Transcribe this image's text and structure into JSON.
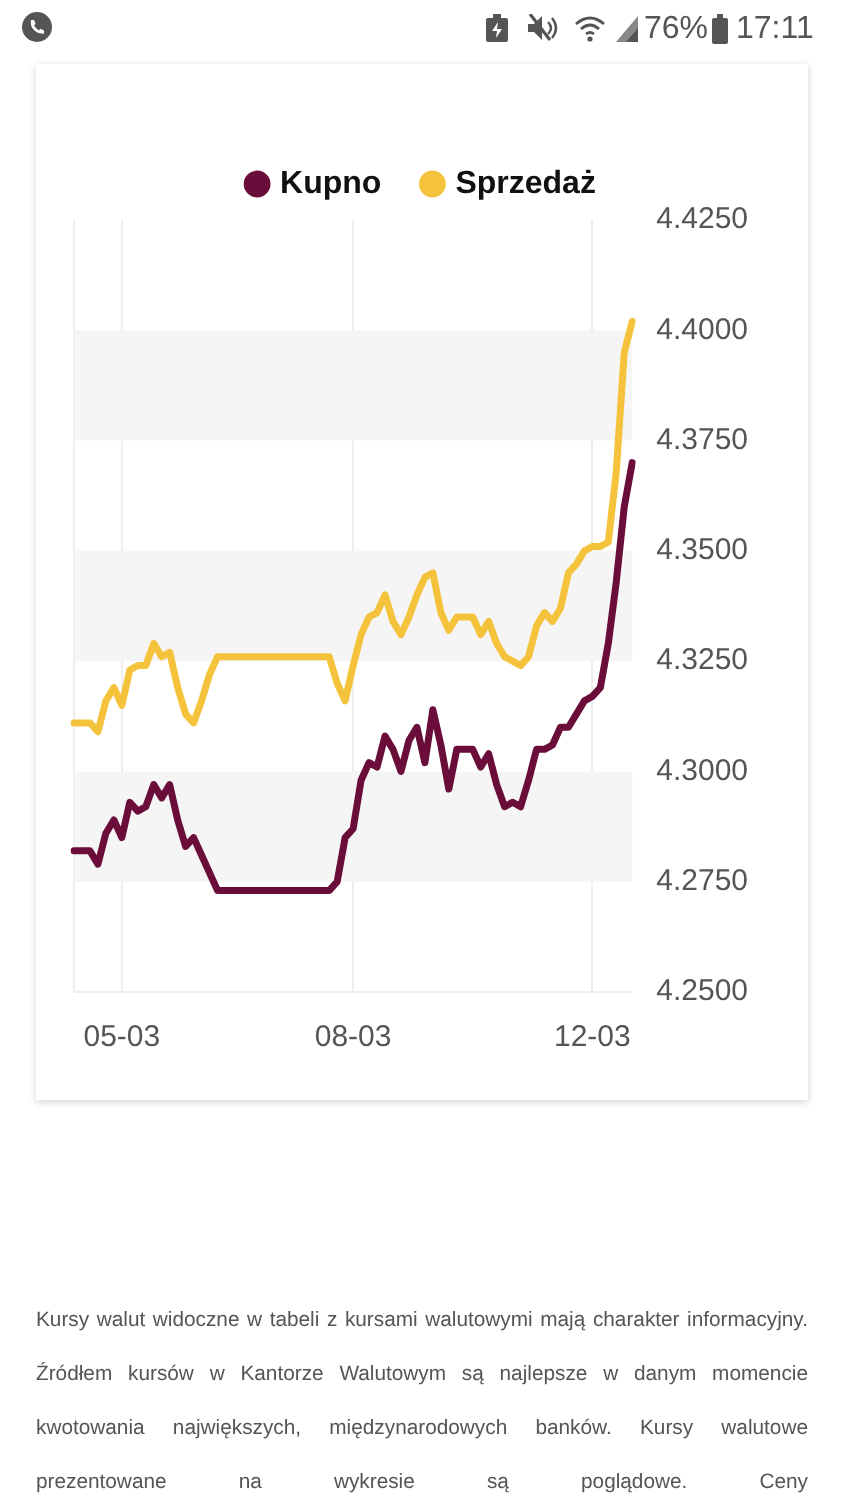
{
  "chart_data": {
    "type": "line",
    "categories": [
      null,
      null,
      null,
      null,
      null,
      null,
      "05-03",
      null,
      null,
      null,
      null,
      null,
      null,
      null,
      null,
      null,
      null,
      null,
      null,
      null,
      null,
      null,
      null,
      null,
      null,
      null,
      null,
      null,
      null,
      null,
      null,
      null,
      null,
      null,
      null,
      "08-03",
      null,
      null,
      null,
      null,
      null,
      null,
      null,
      null,
      null,
      null,
      null,
      null,
      null,
      null,
      null,
      null,
      null,
      null,
      null,
      null,
      null,
      null,
      null,
      null,
      null,
      null,
      null,
      null,
      null,
      "12-03",
      null,
      null,
      null,
      null,
      null
    ],
    "series": [
      {
        "name": "Kupno",
        "color": "#6b0d3a",
        "values": [
          4.282,
          4.282,
          4.282,
          4.279,
          4.286,
          4.289,
          4.285,
          4.293,
          4.291,
          4.292,
          4.297,
          4.294,
          4.297,
          4.289,
          4.283,
          4.285,
          4.281,
          4.277,
          4.273,
          4.273,
          4.273,
          4.273,
          4.273,
          4.273,
          4.273,
          4.273,
          4.273,
          4.273,
          4.273,
          4.273,
          4.273,
          4.273,
          4.273,
          4.275,
          4.285,
          4.287,
          4.298,
          4.302,
          4.301,
          4.308,
          4.305,
          4.3,
          4.307,
          4.31,
          4.302,
          4.314,
          4.306,
          4.296,
          4.305,
          4.305,
          4.305,
          4.301,
          4.304,
          4.297,
          4.292,
          4.293,
          4.292,
          4.298,
          4.305,
          4.305,
          4.306,
          4.31,
          4.31,
          4.313,
          4.316,
          4.317,
          4.319,
          4.329,
          4.343,
          4.36,
          4.37
        ]
      },
      {
        "name": "Sprzedaż",
        "color": "#f5c33b",
        "values": [
          4.311,
          4.311,
          4.311,
          4.309,
          4.316,
          4.319,
          4.315,
          4.323,
          4.324,
          4.324,
          4.329,
          4.326,
          4.327,
          4.319,
          4.313,
          4.311,
          4.316,
          4.322,
          4.326,
          4.326,
          4.326,
          4.326,
          4.326,
          4.326,
          4.326,
          4.326,
          4.326,
          4.326,
          4.326,
          4.326,
          4.326,
          4.326,
          4.326,
          4.32,
          4.316,
          4.324,
          4.331,
          4.335,
          4.336,
          4.34,
          4.334,
          4.331,
          4.335,
          4.34,
          4.344,
          4.345,
          4.336,
          4.332,
          4.335,
          4.335,
          4.335,
          4.331,
          4.334,
          4.329,
          4.326,
          4.325,
          4.324,
          4.326,
          4.333,
          4.336,
          4.334,
          4.337,
          4.345,
          4.347,
          4.35,
          4.351,
          4.351,
          4.352,
          4.368,
          4.395,
          4.402
        ]
      }
    ],
    "ylim": [
      4.25,
      4.425
    ],
    "yticks": [
      {
        "value": 4.25,
        "label": "4.2500"
      },
      {
        "value": 4.275,
        "label": "4.2750"
      },
      {
        "value": 4.3,
        "label": "4.3000"
      },
      {
        "value": 4.325,
        "label": "4.3250"
      },
      {
        "value": 4.35,
        "label": "4.3500"
      },
      {
        "value": 4.375,
        "label": "4.3750"
      },
      {
        "value": 4.4,
        "label": "4.4000"
      },
      {
        "value": 4.425,
        "label": "4.4250"
      }
    ],
    "grid": true,
    "legend": "top",
    "marker": "none",
    "annotations": [
      "76%",
      "17:11",
      "Kursy walut widoczne w tabeli z kursami walutowymi mają charakter informacyjny. Źródłem kursów w Kantorze Walutowym są najlepsze w danym momencie kwotowania największych, międzynarodowych banków. Kursy walutowe prezentowane na wykresie są poglądowe. Ceny"
    ]
  }
}
